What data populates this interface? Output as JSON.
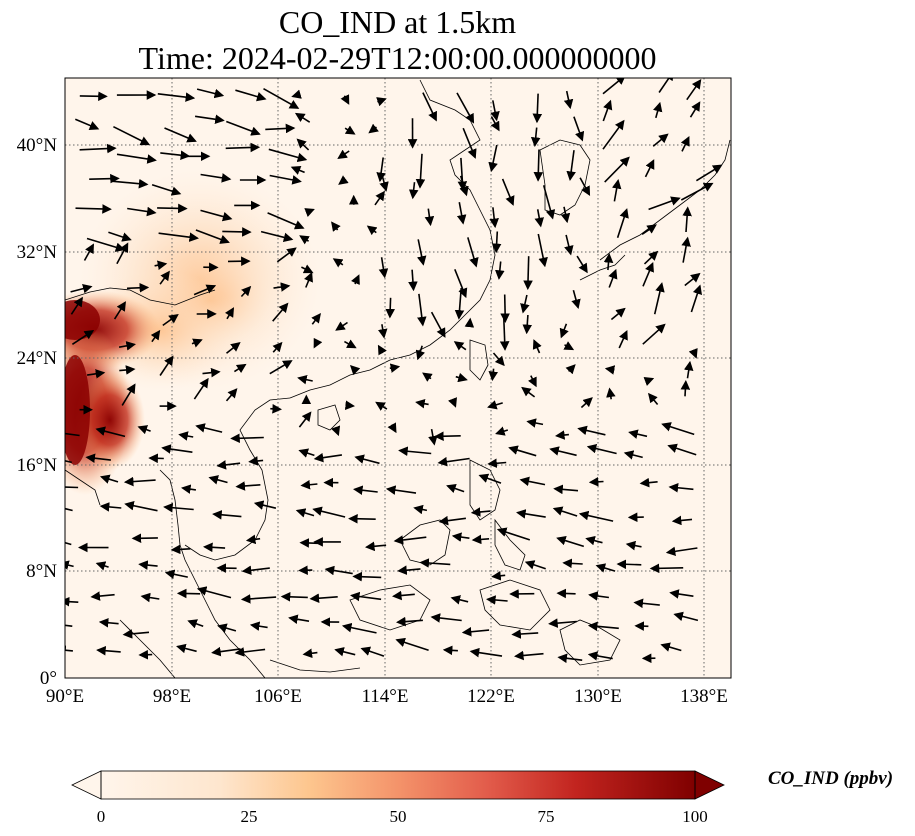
{
  "title": {
    "line1": "CO_IND at 1.5km",
    "line2": "Time: 2024-02-29T12:00:00.000000000"
  },
  "map": {
    "projection": "PlateCarree",
    "extent": {
      "lon": [
        90,
        140
      ],
      "lat": [
        0,
        45
      ]
    },
    "x_ticks": [
      "90°E",
      "98°E",
      "106°E",
      "114°E",
      "122°E",
      "130°E",
      "138°E"
    ],
    "y_ticks": [
      "0°",
      "8°N",
      "16°N",
      "24°N",
      "32°N",
      "40°N"
    ],
    "x_tick_values": [
      90,
      98,
      106,
      114,
      122,
      130,
      138
    ],
    "y_tick_values": [
      0,
      8,
      16,
      24,
      32,
      40
    ],
    "gridlines": "dotted",
    "ocean_color": "#fff5eb",
    "high_concentration_region": "Myanmar / Yunnan / Northern Indochina"
  },
  "colorbar": {
    "label": "CO_IND (ppbv)",
    "ticks": [
      "0",
      "25",
      "50",
      "75",
      "100"
    ],
    "range": [
      0,
      100
    ],
    "colormap": "Oranges-Reds",
    "colors": [
      "#fff5eb",
      "#fdd9b0",
      "#fdae6b",
      "#f16913",
      "#d94801",
      "#a63603",
      "#7f0000"
    ],
    "extend": "both"
  },
  "wind_vectors": "black arrows showing wind direction and speed at 1.5 km"
}
